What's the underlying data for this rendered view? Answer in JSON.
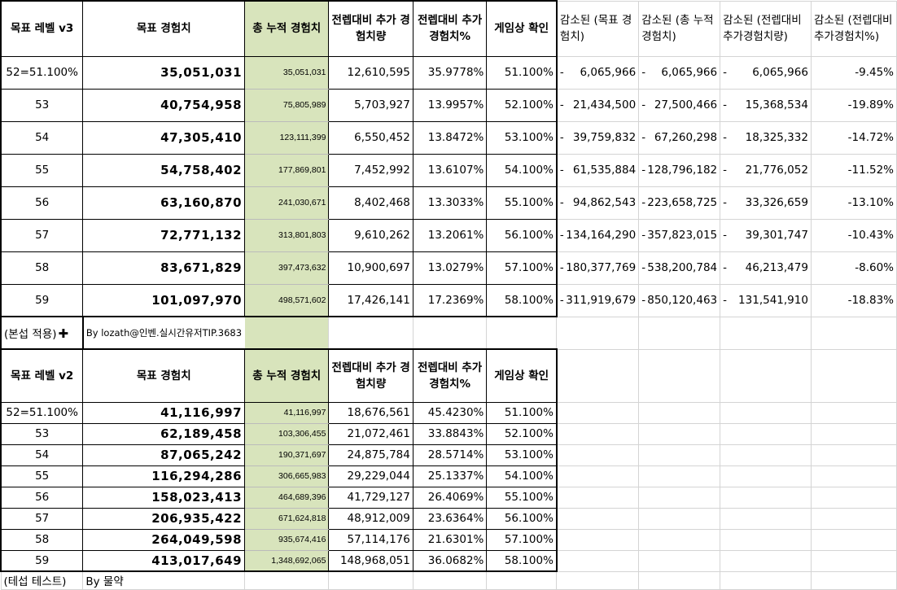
{
  "table_v3": {
    "headers": [
      "목표 레벨 v3",
      "목표 경험치",
      "총 누적 경험치",
      "전렙대비 추가 경험치량",
      "전렙대비 추가경험치%",
      "게임상 확인"
    ],
    "reduced_headers": [
      "감소된 (목표 경험치)",
      "감소된 (총 누적 경험치)",
      "감소된 (전렙대비 추가경험치량)",
      "감소된 (전렙대비 추가경험치%)"
    ],
    "rows": [
      {
        "level": "52=51.100%",
        "target": "35,051,031",
        "cumulative": "35,051,031",
        "add": "12,610,595",
        "add_pct": "35.9778%",
        "ingame": "51.100%",
        "r_target": "6,065,966",
        "r_cum": "6,065,966",
        "r_add": "6,065,966",
        "r_pct": "-9.45%"
      },
      {
        "level": "53",
        "target": "40,754,958",
        "cumulative": "75,805,989",
        "add": "5,703,927",
        "add_pct": "13.9957%",
        "ingame": "52.100%",
        "r_target": "21,434,500",
        "r_cum": "27,500,466",
        "r_add": "15,368,534",
        "r_pct": "-19.89%"
      },
      {
        "level": "54",
        "target": "47,305,410",
        "cumulative": "123,111,399",
        "add": "6,550,452",
        "add_pct": "13.8472%",
        "ingame": "53.100%",
        "r_target": "39,759,832",
        "r_cum": "67,260,298",
        "r_add": "18,325,332",
        "r_pct": "-14.72%"
      },
      {
        "level": "55",
        "target": "54,758,402",
        "cumulative": "177,869,801",
        "add": "7,452,992",
        "add_pct": "13.6107%",
        "ingame": "54.100%",
        "r_target": "61,535,884",
        "r_cum": "128,796,182",
        "r_add": "21,776,052",
        "r_pct": "-11.52%"
      },
      {
        "level": "56",
        "target": "63,160,870",
        "cumulative": "241,030,671",
        "add": "8,402,468",
        "add_pct": "13.3033%",
        "ingame": "55.100%",
        "r_target": "94,862,543",
        "r_cum": "223,658,725",
        "r_add": "33,326,659",
        "r_pct": "-13.10%"
      },
      {
        "level": "57",
        "target": "72,771,132",
        "cumulative": "313,801,803",
        "add": "9,610,262",
        "add_pct": "13.2061%",
        "ingame": "56.100%",
        "r_target": "134,164,290",
        "r_cum": "357,823,015",
        "r_add": "39,301,747",
        "r_pct": "-10.43%"
      },
      {
        "level": "58",
        "target": "83,671,829",
        "cumulative": "397,473,632",
        "add": "10,900,697",
        "add_pct": "13.0279%",
        "ingame": "57.100%",
        "r_target": "180,377,769",
        "r_cum": "538,200,784",
        "r_add": "46,213,479",
        "r_pct": "-8.60%"
      },
      {
        "level": "59",
        "target": "101,097,970",
        "cumulative": "498,571,602",
        "add": "17,426,141",
        "add_pct": "17.2369%",
        "ingame": "58.100%",
        "r_target": "311,919,679",
        "r_cum": "850,120,463",
        "r_add": "131,541,910",
        "r_pct": "-18.83%"
      }
    ],
    "dash": "-"
  },
  "note1": {
    "label": "(본섭 적용)",
    "credit": "By lozath@인벤.실시간유저TIP.3683"
  },
  "table_v2": {
    "headers": [
      "목표 레벨 v2",
      "목표 경험치",
      "총 누적 경험치",
      "전렙대비 추가 경험치량",
      "전렙대비 추가경험치%",
      "게임상 확인"
    ],
    "rows": [
      {
        "level": "52=51.100%",
        "target": "41,116,997",
        "cumulative": "41,116,997",
        "add": "18,676,561",
        "add_pct": "45.4230%",
        "ingame": "51.100%"
      },
      {
        "level": "53",
        "target": "62,189,458",
        "cumulative": "103,306,455",
        "add": "21,072,461",
        "add_pct": "33.8843%",
        "ingame": "52.100%"
      },
      {
        "level": "54",
        "target": "87,065,242",
        "cumulative": "190,371,697",
        "add": "24,875,784",
        "add_pct": "28.5714%",
        "ingame": "53.100%"
      },
      {
        "level": "55",
        "target": "116,294,286",
        "cumulative": "306,665,983",
        "add": "29,229,044",
        "add_pct": "25.1337%",
        "ingame": "54.100%"
      },
      {
        "level": "56",
        "target": "158,023,413",
        "cumulative": "464,689,396",
        "add": "41,729,127",
        "add_pct": "26.4069%",
        "ingame": "55.100%"
      },
      {
        "level": "57",
        "target": "206,935,422",
        "cumulative": "671,624,818",
        "add": "48,912,009",
        "add_pct": "23.6364%",
        "ingame": "56.100%"
      },
      {
        "level": "58",
        "target": "264,049,598",
        "cumulative": "935,674,416",
        "add": "57,114,176",
        "add_pct": "21.6301%",
        "ingame": "57.100%"
      },
      {
        "level": "59",
        "target": "413,017,649",
        "cumulative": "1,348,692,065",
        "add": "148,968,051",
        "add_pct": "36.0682%",
        "ingame": "58.100%"
      }
    ]
  },
  "note2": {
    "label": "(테섭 테스트)",
    "credit": "By 물약"
  },
  "colors": {
    "highlight": "#d8e4bc",
    "grid": "#d4d4d4",
    "border": "#000000"
  }
}
